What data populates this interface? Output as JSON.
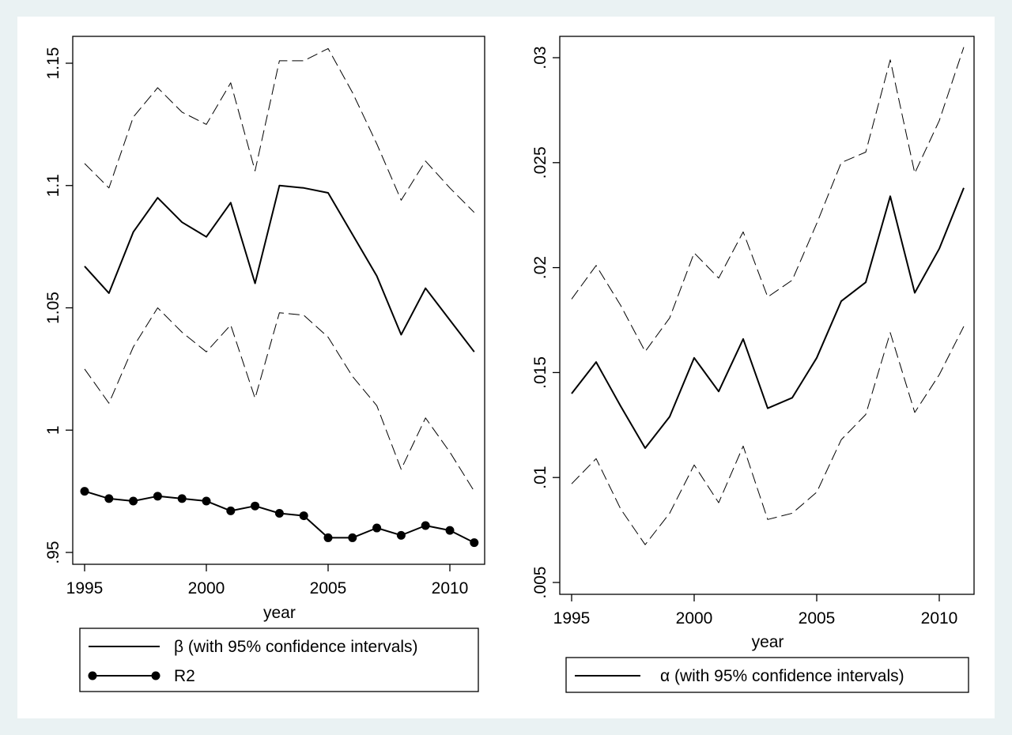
{
  "chart_data": [
    {
      "type": "line",
      "xlabel": "year",
      "ylabel": "",
      "xlim": [
        1995,
        2011
      ],
      "ylim": [
        0.95,
        1.16
      ],
      "x_ticks": [
        "1995",
        "2000",
        "2005",
        "2010"
      ],
      "y_ticks": [
        "1.15",
        "1.1",
        "1.05",
        "1",
        ".95"
      ],
      "x": [
        1995,
        1996,
        1997,
        1998,
        1999,
        2000,
        2001,
        2002,
        2003,
        2004,
        2005,
        2006,
        2007,
        2008,
        2009,
        2010,
        2011
      ],
      "series": [
        {
          "name": "β (with 95% confidence intervals)",
          "style": "solid",
          "values": [
            1.067,
            1.056,
            1.081,
            1.095,
            1.085,
            1.079,
            1.093,
            1.06,
            1.1,
            1.099,
            1.097,
            1.08,
            1.063,
            1.039,
            1.058,
            1.045,
            1.032
          ]
        },
        {
          "style": "dashed",
          "values": [
            1.109,
            1.099,
            1.128,
            1.14,
            1.13,
            1.125,
            1.142,
            1.106,
            1.151,
            1.151,
            1.156,
            1.138,
            1.117,
            1.094,
            1.11,
            1.099,
            1.089
          ]
        },
        {
          "style": "dashed",
          "values": [
            1.025,
            1.011,
            1.034,
            1.05,
            1.04,
            1.032,
            1.043,
            1.013,
            1.048,
            1.047,
            1.038,
            1.022,
            1.01,
            0.984,
            1.005,
            0.991,
            0.975
          ]
        },
        {
          "name": "R2",
          "style": "solid-markers",
          "values": [
            0.975,
            0.972,
            0.971,
            0.973,
            0.972,
            0.971,
            0.967,
            0.969,
            0.966,
            0.965,
            0.956,
            0.956,
            0.96,
            0.957,
            0.961,
            0.959,
            0.954
          ]
        }
      ],
      "legend": [
        "β (with 95% confidence intervals)",
        "R2"
      ],
      "legend_position": "bottom"
    },
    {
      "type": "line",
      "xlabel": "year",
      "ylabel": "",
      "xlim": [
        1995,
        2011
      ],
      "ylim": [
        0.005,
        0.0313
      ],
      "x_ticks": [
        "1995",
        "2000",
        "2005",
        "2010"
      ],
      "y_ticks": [
        ".03",
        ".025",
        ".02",
        ".015",
        ".01",
        ".005"
      ],
      "x": [
        1995,
        1996,
        1997,
        1998,
        1999,
        2000,
        2001,
        2002,
        2003,
        2004,
        2005,
        2006,
        2007,
        2008,
        2009,
        2010,
        2011
      ],
      "series": [
        {
          "name": "α (with 95% confidence intervals)",
          "style": "solid",
          "values": [
            0.014,
            0.0155,
            0.0134,
            0.0114,
            0.0129,
            0.0157,
            0.0141,
            0.0166,
            0.0133,
            0.0138,
            0.0157,
            0.0184,
            0.0193,
            0.0234,
            0.0188,
            0.0209,
            0.0238
          ]
        },
        {
          "style": "dashed",
          "values": [
            0.0185,
            0.0201,
            0.0182,
            0.016,
            0.0176,
            0.0207,
            0.0195,
            0.0217,
            0.0186,
            0.0194,
            0.0221,
            0.025,
            0.0255,
            0.0299,
            0.0245,
            0.027,
            0.0305
          ]
        },
        {
          "style": "dashed",
          "values": [
            0.0097,
            0.0109,
            0.0085,
            0.0068,
            0.0083,
            0.0106,
            0.0088,
            0.0115,
            0.008,
            0.0083,
            0.0093,
            0.0118,
            0.013,
            0.0169,
            0.0131,
            0.0149,
            0.0172
          ]
        }
      ],
      "legend": [
        "α (with 95% confidence intervals)"
      ],
      "legend_position": "bottom"
    }
  ]
}
